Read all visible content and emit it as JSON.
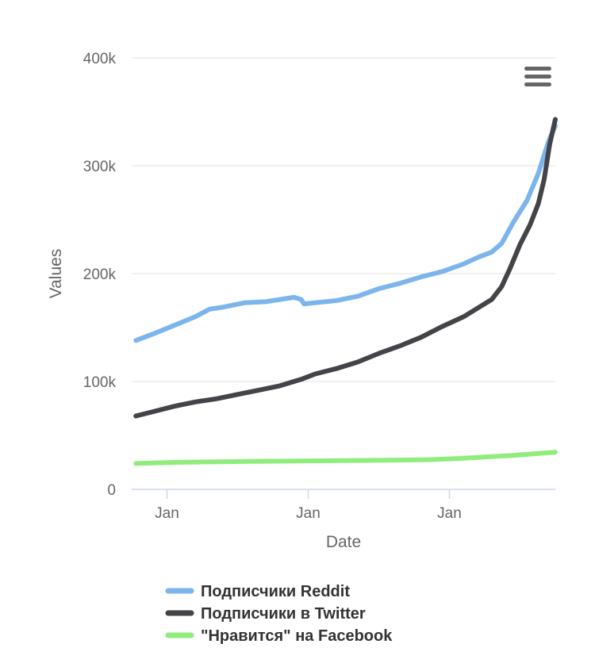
{
  "chart_data": {
    "type": "line",
    "xlabel": "Date",
    "ylabel": "Values",
    "ylim": [
      0,
      400000
    ],
    "yticks": [
      {
        "value": 0,
        "label": "0"
      },
      {
        "value": 100000,
        "label": "100k"
      },
      {
        "value": 200000,
        "label": "200k"
      },
      {
        "value": 300000,
        "label": "300k"
      },
      {
        "value": 400000,
        "label": "400k"
      }
    ],
    "xlim": [
      0,
      3
    ],
    "xticks": [
      {
        "value": 0.25,
        "label": "Jan"
      },
      {
        "value": 1.25,
        "label": "Jan"
      },
      {
        "value": 2.25,
        "label": "Jan"
      }
    ],
    "grid": true,
    "legend_position": "bottom",
    "series": [
      {
        "name": "Подписчики Reddit",
        "color": "#7cb5ec",
        "x": [
          0.03,
          0.15,
          0.3,
          0.45,
          0.55,
          0.65,
          0.8,
          0.95,
          1.05,
          1.15,
          1.2,
          1.22,
          1.3,
          1.45,
          1.6,
          1.75,
          1.9,
          2.05,
          2.2,
          2.35,
          2.45,
          2.55,
          2.62,
          2.7,
          2.8,
          2.88,
          2.95,
          3.0
        ],
        "values": [
          138000,
          144000,
          152000,
          160000,
          167000,
          169000,
          173000,
          174000,
          176000,
          178000,
          176000,
          172000,
          173000,
          175000,
          179000,
          186000,
          191000,
          197000,
          202000,
          209000,
          215000,
          220000,
          228000,
          247000,
          268000,
          293000,
          322000,
          337000
        ]
      },
      {
        "name": "Подписчики в Twitter",
        "color": "#434348",
        "x": [
          0.03,
          0.15,
          0.3,
          0.45,
          0.6,
          0.75,
          0.9,
          1.05,
          1.2,
          1.3,
          1.45,
          1.6,
          1.75,
          1.9,
          2.05,
          2.2,
          2.35,
          2.45,
          2.55,
          2.62,
          2.68,
          2.75,
          2.82,
          2.88,
          2.92,
          2.96,
          3.0
        ],
        "values": [
          68000,
          72000,
          77000,
          81000,
          84000,
          88000,
          92000,
          96000,
          102000,
          107000,
          112000,
          118000,
          126000,
          133000,
          141000,
          151000,
          160000,
          168000,
          176000,
          188000,
          205000,
          227000,
          245000,
          265000,
          287000,
          320000,
          343000
        ]
      },
      {
        "name": "\"Нравится\" на Facebook",
        "color": "#90ed7d",
        "x": [
          0.03,
          0.3,
          0.6,
          0.9,
          1.2,
          1.5,
          1.8,
          2.1,
          2.3,
          2.5,
          2.7,
          2.85,
          3.0
        ],
        "values": [
          24000,
          25000,
          25500,
          26000,
          26300,
          26600,
          27000,
          27500,
          28500,
          30000,
          31500,
          33000,
          34500
        ]
      }
    ]
  }
}
